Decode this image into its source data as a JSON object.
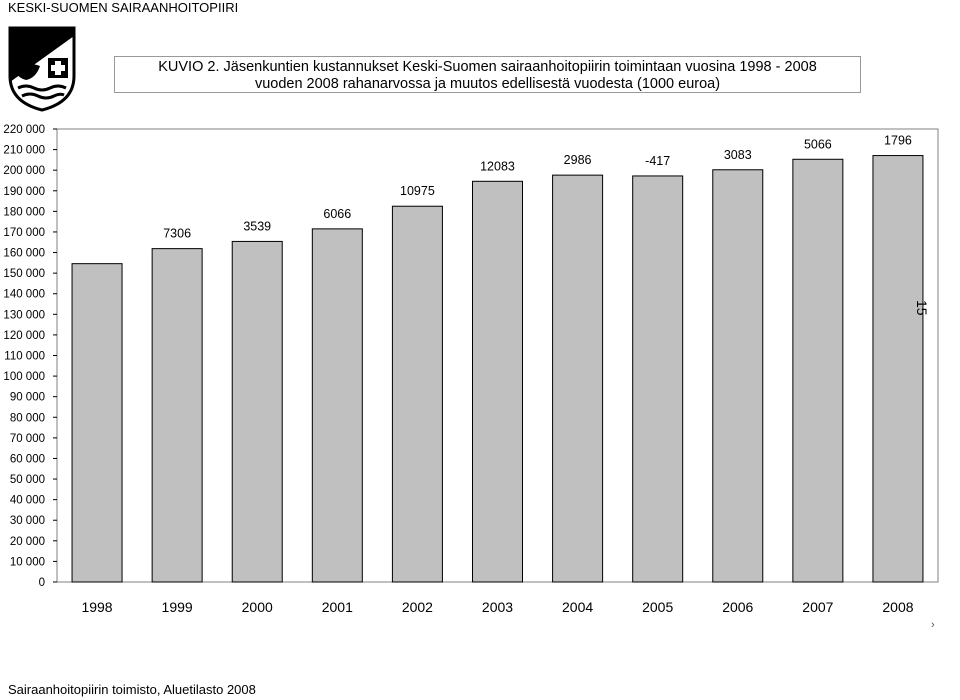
{
  "header": {
    "org_name": "KESKI-SUOMEN SAIRAANHOITOPIIRI"
  },
  "title": {
    "line1": "KUVIO 2. Jäsenkuntien kustannukset Keski-Suomen sairaanhoitopiirin toimintaan vuosina 1998 - 2008",
    "line2": "vuoden 2008 rahanarvossa ja muutos edellisestä vuodesta (1000 euroa)"
  },
  "page_number": "15",
  "footer": {
    "source": "Sairaanhoitopiirin toimisto, Aluetilasto 2008"
  },
  "stray_mark": "›",
  "colors": {
    "bar_fill": "#c0c0c0",
    "bar_stroke": "#000000",
    "plot_border": "#808080"
  },
  "chart_data": {
    "type": "bar",
    "title": "KUVIO 2. Jäsenkuntien kustannukset Keski-Suomen sairaanhoitopiirin toimintaan vuosina 1998 - 2008 vuoden 2008 rahanarvossa ja muutos edellisestä vuodesta (1000 euroa)",
    "categories": [
      "1998",
      "1999",
      "2000",
      "2001",
      "2002",
      "2003",
      "2004",
      "2005",
      "2006",
      "2007",
      "2008"
    ],
    "values": [
      154600,
      161900,
      165400,
      171500,
      182500,
      194600,
      197600,
      197200,
      200200,
      205300,
      207100
    ],
    "data_labels": [
      "",
      "7306",
      "3539",
      "6066",
      "10975",
      "12083",
      "2986",
      "-417",
      "3083",
      "5066",
      "1796"
    ],
    "ylim": [
      0,
      220000
    ],
    "yticks": [
      "0",
      "10 000",
      "20 000",
      "30 000",
      "40 000",
      "50 000",
      "60 000",
      "70 000",
      "80 000",
      "90 000",
      "100 000",
      "110 000",
      "120 000",
      "130 000",
      "140 000",
      "150 000",
      "160 000",
      "170 000",
      "180 000",
      "190 000",
      "200 000",
      "210 000",
      "220 000"
    ],
    "grid": false,
    "xlabel": "",
    "ylabel": ""
  }
}
